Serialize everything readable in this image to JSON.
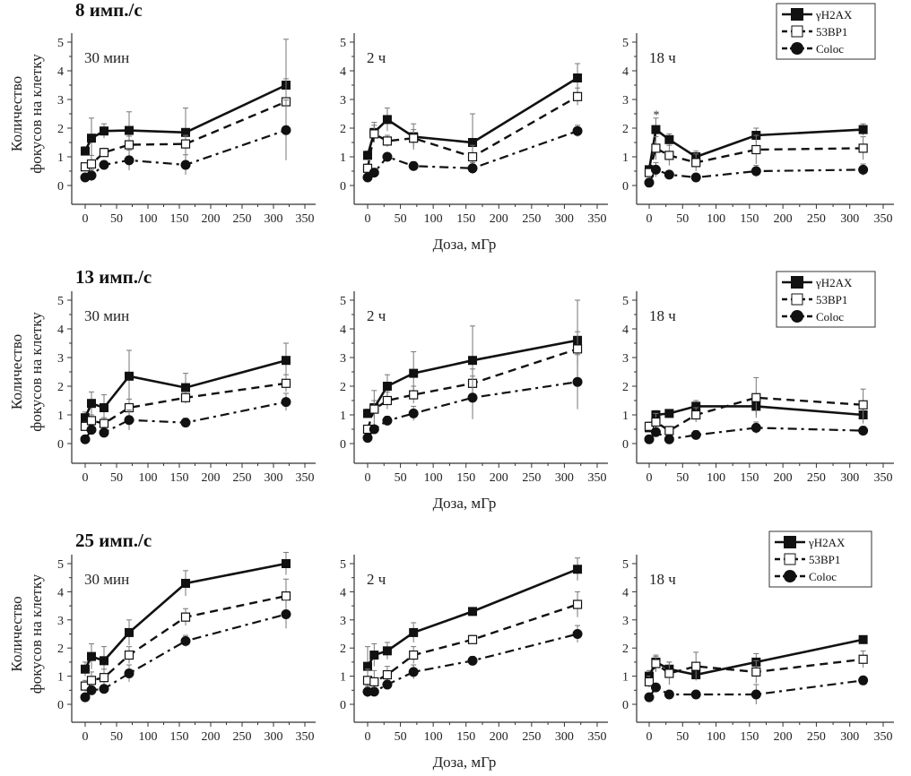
{
  "chart_data": {
    "type": "line",
    "xlabel": "Доза, мГр",
    "ylabel": [
      "Количество",
      "фокусов на клетку"
    ],
    "xlim": [
      0,
      350
    ],
    "ylim": [
      0,
      5
    ],
    "xticks": [
      0,
      50,
      100,
      150,
      200,
      250,
      300,
      350
    ],
    "yticks": [
      0,
      1,
      2,
      3,
      4,
      5
    ],
    "x": [
      0,
      10,
      30,
      70,
      160,
      320
    ],
    "legend": [
      "γH2AX",
      "53BP1",
      "Coloc"
    ],
    "annotation": "*",
    "rows": [
      {
        "title": "8 имп./с",
        "panels": [
          {
            "label": "30 мин",
            "series": [
              {
                "name": "γH2AX",
                "values": [
                  1.2,
                  1.65,
                  1.9,
                  1.92,
                  1.85,
                  3.5
                ],
                "err": [
                  0.15,
                  0.7,
                  0.25,
                  0.65,
                  0.85,
                  1.6
                ]
              },
              {
                "name": "53BP1",
                "values": [
                  0.65,
                  0.75,
                  1.15,
                  1.42,
                  1.45,
                  2.92
                ],
                "err": [
                  0.1,
                  0.3,
                  0.15,
                  0.3,
                  0.3,
                  0.8
                ]
              },
              {
                "name": "Coloc",
                "values": [
                  0.28,
                  0.35,
                  0.72,
                  0.88,
                  0.72,
                  1.93
                ],
                "err": [
                  0.05,
                  0.2,
                  0.1,
                  0.35,
                  0.35,
                  1.05
                ]
              }
            ]
          },
          {
            "label": "2 ч",
            "series": [
              {
                "name": "γH2AX",
                "values": [
                  1.05,
                  1.85,
                  2.3,
                  1.7,
                  1.5,
                  3.75
                ],
                "err": [
                  0.15,
                  0.35,
                  0.4,
                  0.45,
                  1.0,
                  0.5
                ]
              },
              {
                "name": "53BP1",
                "values": [
                  0.6,
                  1.8,
                  1.55,
                  1.65,
                  1.0,
                  3.1
                ],
                "err": [
                  0.15,
                  0.3,
                  0.2,
                  0.3,
                  0.4,
                  0.3
                ]
              },
              {
                "name": "Coloc",
                "values": [
                  0.28,
                  0.45,
                  1.0,
                  0.68,
                  0.6,
                  1.9
                ],
                "err": [
                  0.05,
                  0.1,
                  0.1,
                  0.15,
                  0.2,
                  0.2
                ]
              }
            ]
          },
          {
            "label": "18 ч",
            "series": [
              {
                "name": "γH2AX",
                "values": [
                  0.55,
                  1.95,
                  1.6,
                  1.0,
                  1.75,
                  1.95
                ],
                "err": [
                  0.1,
                  0.4,
                  0.2,
                  0.2,
                  0.25,
                  0.2
                ]
              },
              {
                "name": "53BP1",
                "values": [
                  0.45,
                  1.3,
                  1.05,
                  0.8,
                  1.25,
                  1.3
                ],
                "err": [
                  0.1,
                  0.4,
                  0.35,
                  0.3,
                  0.5,
                  0.4
                ]
              },
              {
                "name": "Coloc",
                "values": [
                  0.1,
                  0.55,
                  0.38,
                  0.28,
                  0.5,
                  0.55
                ],
                "err": [
                  0.05,
                  0.25,
                  0.1,
                  0.1,
                  0.2,
                  0.2
                ]
              }
            ]
          }
        ]
      },
      {
        "title": "13 имп./с",
        "panels": [
          {
            "label": "30 мин",
            "series": [
              {
                "name": "γH2AX",
                "values": [
                  0.9,
                  1.4,
                  1.25,
                  2.35,
                  1.95,
                  2.9
                ],
                "err": [
                  0.2,
                  0.4,
                  0.45,
                  0.9,
                  0.5,
                  0.6
                ]
              },
              {
                "name": "53BP1",
                "values": [
                  0.6,
                  0.8,
                  0.7,
                  1.25,
                  1.6,
                  2.1
                ],
                "err": [
                  0.15,
                  0.2,
                  0.2,
                  0.3,
                  0.2,
                  0.3
                ]
              },
              {
                "name": "Coloc",
                "values": [
                  0.15,
                  0.48,
                  0.38,
                  0.82,
                  0.73,
                  1.45
                ],
                "err": [
                  0.05,
                  0.1,
                  0.1,
                  0.35,
                  0.15,
                  0.3
                ]
              }
            ]
          },
          {
            "label": "2 ч",
            "series": [
              {
                "name": "γH2AX",
                "values": [
                  1.05,
                  1.25,
                  2.0,
                  2.45,
                  2.9,
                  3.6
                ],
                "err": [
                  0.15,
                  0.6,
                  0.4,
                  0.75,
                  1.2,
                  1.4
                ]
              },
              {
                "name": "53BP1",
                "values": [
                  0.5,
                  1.2,
                  1.5,
                  1.7,
                  2.1,
                  3.3
                ],
                "err": [
                  0.1,
                  0.3,
                  0.3,
                  0.3,
                  0.5,
                  0.6
                ]
              },
              {
                "name": "Coloc",
                "values": [
                  0.2,
                  0.5,
                  0.8,
                  1.05,
                  1.6,
                  2.15
                ],
                "err": [
                  0.05,
                  0.1,
                  0.15,
                  0.25,
                  0.75,
                  0.95
                ]
              }
            ]
          },
          {
            "label": "18 ч",
            "series": [
              {
                "name": "γH2AX",
                "values": [
                  0.55,
                  1.0,
                  1.05,
                  1.3,
                  1.3,
                  1.0
                ],
                "err": [
                  0.1,
                  0.15,
                  0.1,
                  0.2,
                  0.3,
                  0.3
                ]
              },
              {
                "name": "53BP1",
                "values": [
                  0.6,
                  0.75,
                  0.45,
                  1.0,
                  1.6,
                  1.35
                ],
                "err": [
                  0.15,
                  0.3,
                  0.15,
                  0.25,
                  0.7,
                  0.55
                ]
              },
              {
                "name": "Coloc",
                "values": [
                  0.15,
                  0.4,
                  0.15,
                  0.3,
                  0.55,
                  0.45
                ],
                "err": [
                  0.05,
                  0.15,
                  0.05,
                  0.15,
                  0.2,
                  0.15
                ]
              }
            ]
          }
        ]
      },
      {
        "title": "25 имп./с",
        "panels": [
          {
            "label": "30 мин",
            "series": [
              {
                "name": "γH2AX",
                "values": [
                  1.25,
                  1.7,
                  1.55,
                  2.55,
                  4.3,
                  5.0
                ],
                "err": [
                  0.25,
                  0.45,
                  0.5,
                  0.45,
                  0.45,
                  0.4
                ]
              },
              {
                "name": "53BP1",
                "values": [
                  0.65,
                  0.85,
                  0.95,
                  1.75,
                  3.1,
                  3.85
                ],
                "err": [
                  0.2,
                  0.3,
                  0.3,
                  0.3,
                  0.3,
                  0.6
                ]
              },
              {
                "name": "Coloc",
                "values": [
                  0.25,
                  0.5,
                  0.55,
                  1.1,
                  2.25,
                  3.2
                ],
                "err": [
                  0.05,
                  0.1,
                  0.1,
                  0.3,
                  0.2,
                  0.5
                ]
              }
            ]
          },
          {
            "label": "2 ч",
            "series": [
              {
                "name": "γH2AX",
                "values": [
                  1.35,
                  1.75,
                  1.9,
                  2.55,
                  3.3,
                  4.8
                ],
                "err": [
                  0.7,
                  0.4,
                  0.3,
                  0.35,
                  0.1,
                  0.4
                ]
              },
              {
                "name": "53BP1",
                "values": [
                  0.85,
                  0.8,
                  1.05,
                  1.75,
                  2.3,
                  3.55
                ],
                "err": [
                  0.4,
                  0.4,
                  0.3,
                  0.3,
                  0.15,
                  0.45
                ]
              },
              {
                "name": "Coloc",
                "values": [
                  0.45,
                  0.45,
                  0.7,
                  1.15,
                  1.55,
                  2.5
                ],
                "err": [
                  0.2,
                  0.1,
                  0.15,
                  0.25,
                  0.15,
                  0.3
                ]
              }
            ]
          },
          {
            "label": "18 ч",
            "series": [
              {
                "name": "γH2AX",
                "values": [
                  1.0,
                  1.5,
                  1.25,
                  1.05,
                  1.5,
                  2.3
                ],
                "err": [
                  0.2,
                  0.2,
                  0.25,
                  0.2,
                  0.3,
                  0.1
                ]
              },
              {
                "name": "53BP1",
                "values": [
                  0.8,
                  1.45,
                  1.1,
                  1.35,
                  1.15,
                  1.6
                ],
                "err": [
                  0.2,
                  0.3,
                  0.4,
                  0.5,
                  0.4,
                  0.3
                ]
              },
              {
                "name": "Coloc",
                "values": [
                  0.25,
                  0.6,
                  0.35,
                  0.35,
                  0.35,
                  0.85
                ],
                "err": [
                  0.05,
                  0.1,
                  0.1,
                  0.1,
                  0.35,
                  0.1
                ]
              }
            ]
          }
        ]
      }
    ]
  }
}
